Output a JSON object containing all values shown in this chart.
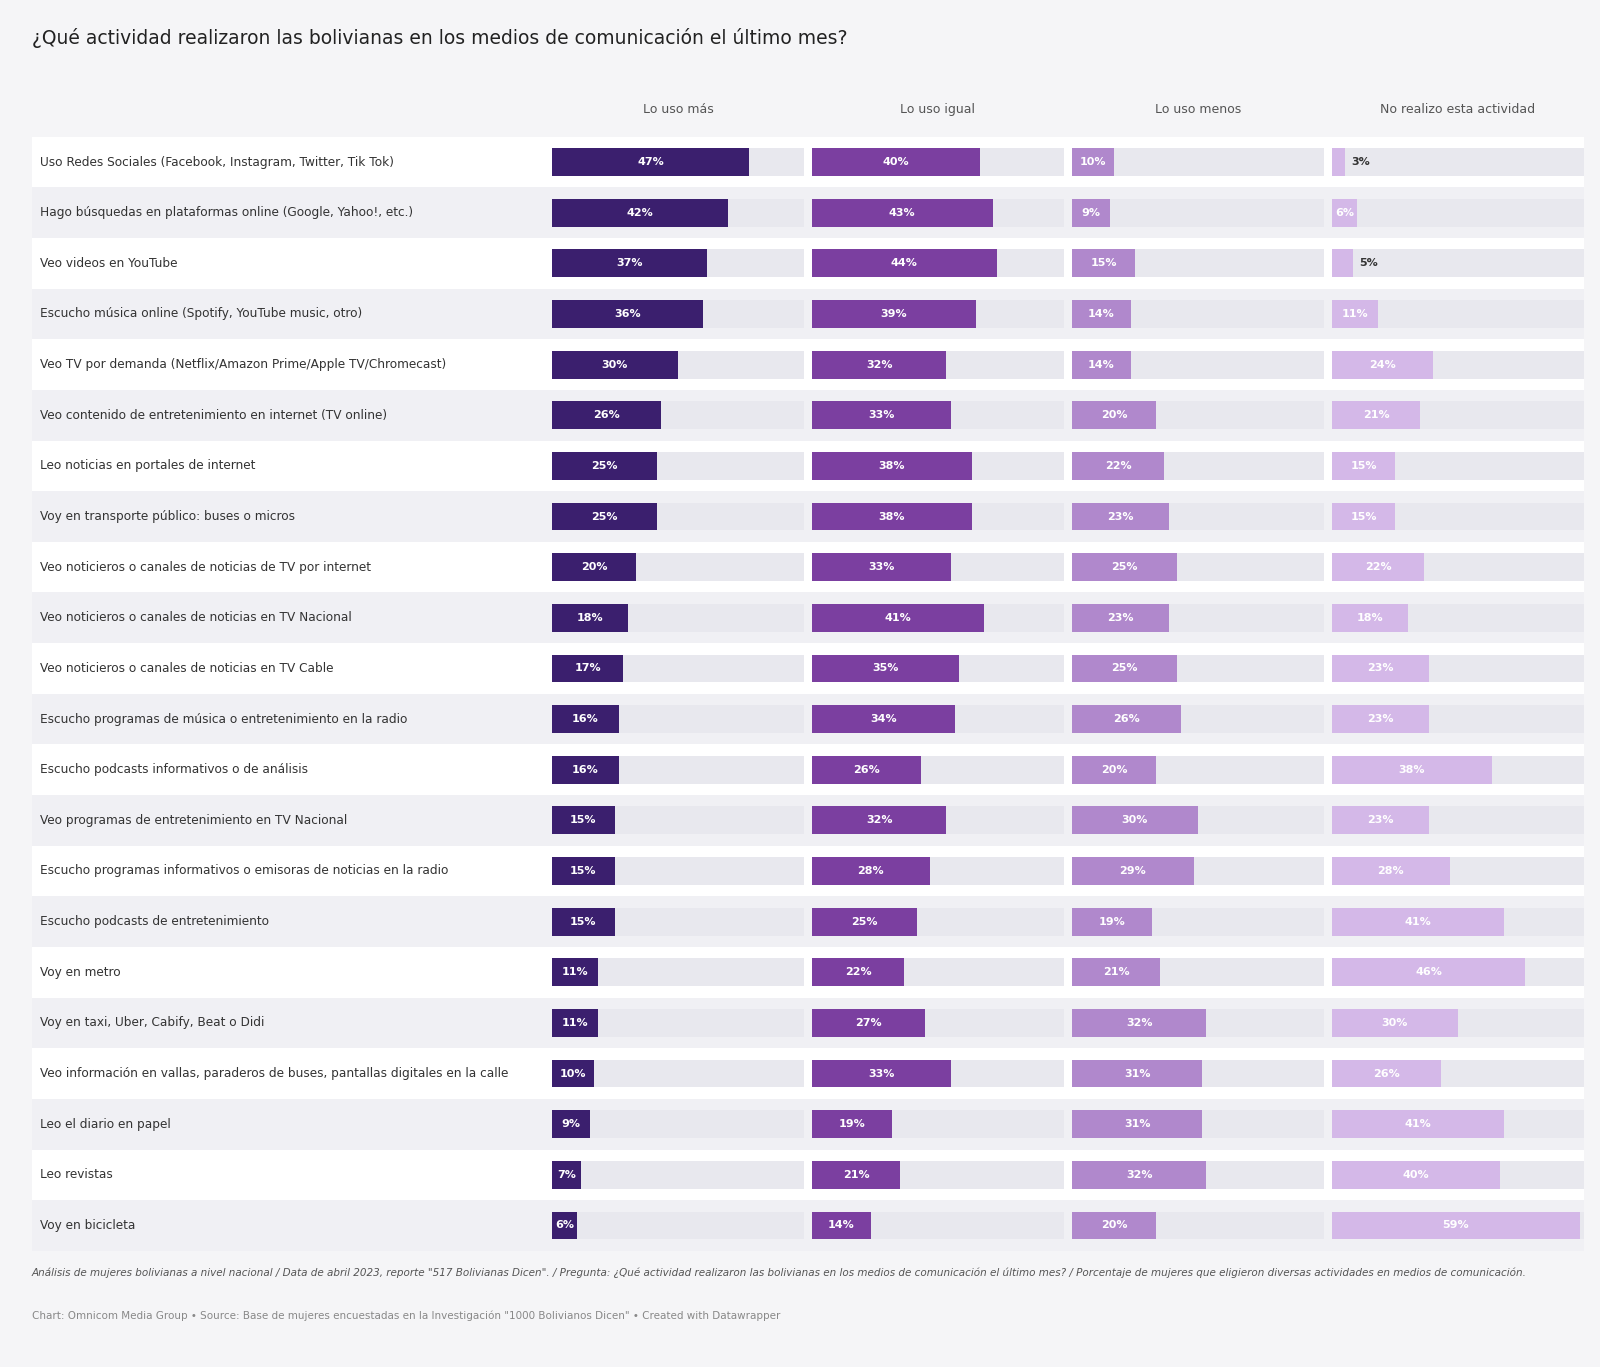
{
  "title": "¿Qué actividad realizaron las bolivianas en los medios de comunicación el último mes?",
  "categories": [
    "Uso Redes Sociales (Facebook, Instagram, Twitter, Tik Tok)",
    "Hago búsquedas en plataformas online (Google, Yahoo!, etc.)",
    "Veo videos en YouTube",
    "Escucho música online (Spotify, YouTube music, otro)",
    "Veo TV por demanda (Netflix/Amazon Prime/Apple TV/Chromecast)",
    "Veo contenido de entretenimiento en internet (TV online)",
    "Leo noticias en portales de internet",
    "Voy en transporte público: buses o micros",
    "Veo noticieros o canales de noticias de TV por internet",
    "Veo noticieros o canales de noticias en TV Nacional",
    "Veo noticieros o canales de noticias en TV Cable",
    "Escucho programas de música o entretenimiento en la radio",
    "Escucho podcasts informativos o de análisis",
    "Veo programas de entretenimiento en TV Nacional",
    "Escucho programas informativos o emisoras de noticias en la radio",
    "Escucho podcasts de entretenimiento",
    "Voy en metro",
    "Voy en taxi, Uber, Cabify, Beat o Didi",
    "Veo información en vallas, paraderos de buses, pantallas digitales en la calle",
    "Leo el diario en papel",
    "Leo revistas",
    "Voy en bicicleta"
  ],
  "lo_uso_mas": [
    47,
    42,
    37,
    36,
    30,
    26,
    25,
    25,
    20,
    18,
    17,
    16,
    16,
    15,
    15,
    15,
    11,
    11,
    10,
    9,
    7,
    6
  ],
  "lo_uso_igual": [
    40,
    43,
    44,
    39,
    32,
    33,
    38,
    38,
    33,
    41,
    35,
    34,
    26,
    32,
    28,
    25,
    22,
    27,
    33,
    19,
    21,
    14
  ],
  "lo_uso_menos": [
    10,
    9,
    15,
    14,
    14,
    20,
    22,
    23,
    25,
    23,
    25,
    26,
    20,
    30,
    29,
    19,
    21,
    32,
    31,
    31,
    32,
    20
  ],
  "no_realizo": [
    3,
    6,
    5,
    11,
    24,
    21,
    15,
    15,
    22,
    18,
    23,
    23,
    38,
    23,
    28,
    41,
    46,
    30,
    26,
    41,
    40,
    59
  ],
  "color_mas": "#3b1f6e",
  "color_igual": "#7b3fa0",
  "color_menos": "#b088cc",
  "color_no": "#d4b8e8",
  "legend_labels": [
    "Lo uso más",
    "Lo uso igual",
    "Lo uso menos",
    "No realizo esta actividad"
  ],
  "footnote1": "Análisis de mujeres bolivianas a nivel nacional / Data de abril 2023, reporte \"517 Bolivianas Dicen\". / Pregunta: ¿Qué actividad realizaron las bolivianas en los medios de comunicación el último mes? / Porcentaje de mujeres que eligieron diversas actividades en medios de comunicación.",
  "footnote2": "Chart: Omnicom Media Group • Source: Base de mujeres encuestadas en la Investigación \"1000 Bolivianos Dicen\" • Created with Datawrapper",
  "bg_color": "#f5f5f7",
  "row_odd_color": "#ffffff",
  "row_even_color": "#f0f0f4",
  "text_color": "#333333",
  "title_color": "#222222",
  "max_bar_pct": 60
}
